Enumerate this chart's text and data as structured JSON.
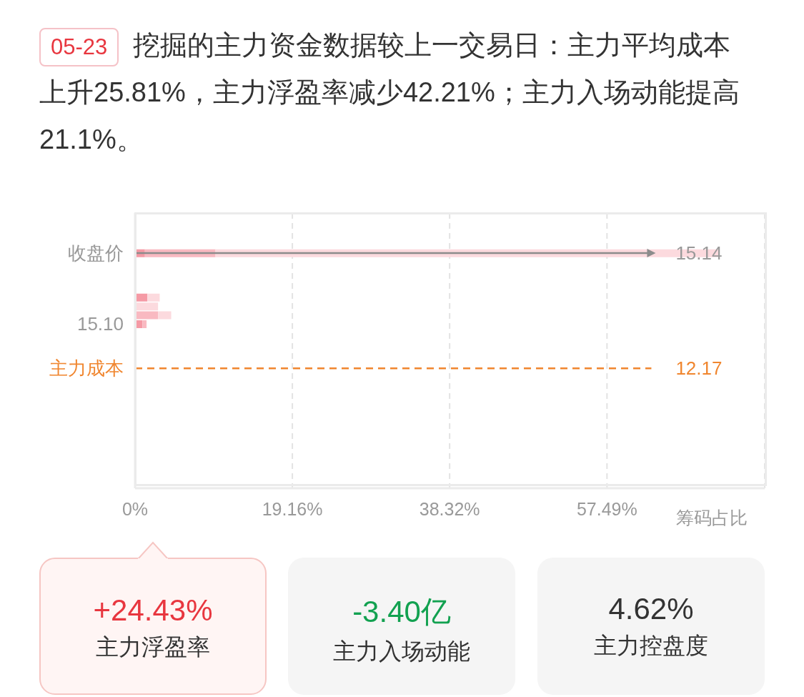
{
  "chart_data": {
    "type": "bar",
    "orientation": "horizontal",
    "stacked": true,
    "title": "挖掘的主力资金数据较上一交易日：主力平均成本上升25.81%，主力浮盈率减少42.21%；主力入场动能提高21.1%。",
    "xlabel": "筹码占比",
    "categories": [
      null,
      null,
      null,
      null,
      "收盘价",
      null,
      null,
      null,
      null,
      null,
      null,
      null,
      "15.10",
      null,
      null,
      null,
      null,
      "主力成本",
      null,
      null,
      null,
      null,
      null,
      null,
      null,
      null,
      null,
      null,
      null,
      null,
      null
    ],
    "series": [
      {
        "color": "#f59aa5",
        "values": [
          null,
          null,
          null,
          null,
          1.2,
          null,
          null,
          null,
          null,
          1.5,
          0,
          0,
          0.9,
          null,
          null,
          null,
          null,
          null,
          null,
          null,
          null,
          null,
          null,
          null,
          null,
          null,
          null,
          null,
          null,
          null,
          null
        ]
      },
      {
        "color": "#f9b9c1",
        "values": [
          null,
          null,
          null,
          null,
          8.6,
          null,
          null,
          null,
          null,
          0,
          0,
          2.8,
          0.5,
          null,
          null,
          null,
          null,
          null,
          null,
          null,
          null,
          null,
          null,
          null,
          null,
          null,
          null,
          null,
          null,
          null,
          null
        ]
      },
      {
        "color": "#fcdade",
        "values": [
          null,
          null,
          null,
          null,
          61.3,
          null,
          null,
          null,
          null,
          1.5,
          2.8,
          1.6,
          0,
          null,
          null,
          null,
          null,
          null,
          null,
          null,
          null,
          null,
          null,
          null,
          null,
          null,
          null,
          null,
          null,
          null,
          null
        ]
      }
    ],
    "xlim": [
      0,
      76.7
    ],
    "xticks": [
      {
        "value": 0,
        "label": "0%"
      },
      {
        "value": 19.16,
        "label": "19.16%"
      },
      {
        "value": 38.32,
        "label": "38.32%"
      },
      {
        "value": 57.49,
        "label": "57.49%"
      }
    ],
    "grid": "x",
    "ref_lines": [
      {
        "axis": "y",
        "value": "收盘价",
        "label": "15.14",
        "color": "#8c8c8c",
        "line_style": "solid"
      },
      {
        "axis": "y",
        "value": "主力成本",
        "label": "12.17",
        "color": "#f0862f",
        "line_style": "dashed"
      }
    ],
    "annotations": [
      "05-23",
      "+24.43%",
      "主力浮盈率",
      "-3.40亿",
      "主力入场动能",
      "4.62%",
      "主力控盘度"
    ]
  }
}
